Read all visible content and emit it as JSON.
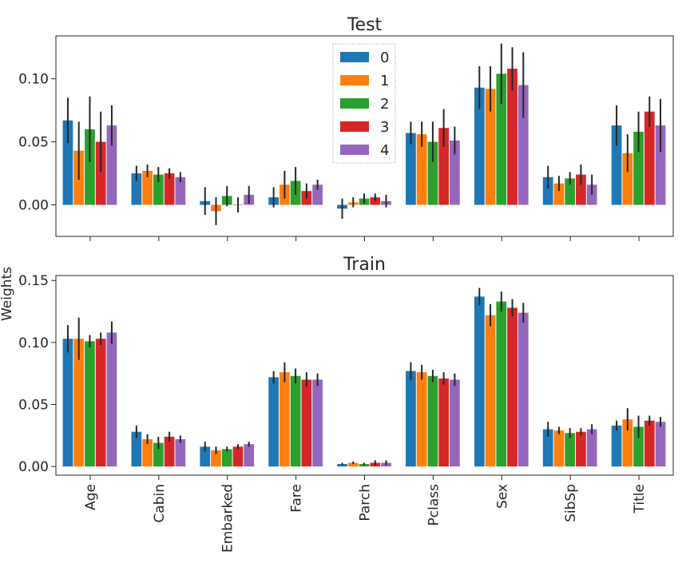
{
  "figure": {
    "ylabel": "Weights"
  },
  "chart_data": [
    {
      "type": "bar",
      "title": "Test",
      "categories": [
        "Age",
        "Cabin",
        "Embarked",
        "Fare",
        "Parch",
        "Pclass",
        "Sex",
        "SibSp",
        "Title"
      ],
      "ylim": [
        -0.025,
        0.134
      ],
      "yticks": [
        0.0,
        0.05,
        0.1
      ],
      "ytick_labels": [
        "0.00",
        "0.05",
        "0.10"
      ],
      "xtick_labels_visible": false,
      "grid": false,
      "legend": {
        "placement": "upper-center",
        "entries": [
          "0",
          "1",
          "2",
          "3",
          "4"
        ]
      },
      "series": [
        {
          "name": "0",
          "color": "#1f77b4",
          "values": [
            0.067,
            0.025,
            0.003,
            0.006,
            -0.003,
            0.057,
            0.093,
            0.022,
            0.063
          ],
          "errors": [
            0.018,
            0.006,
            0.011,
            0.008,
            0.008,
            0.009,
            0.017,
            0.009,
            0.016
          ]
        },
        {
          "name": "1",
          "color": "#ff7f0e",
          "values": [
            0.043,
            0.027,
            -0.005,
            0.016,
            0.002,
            0.056,
            0.092,
            0.017,
            0.041
          ],
          "errors": [
            0.023,
            0.005,
            0.011,
            0.011,
            0.004,
            0.01,
            0.018,
            0.006,
            0.015
          ]
        },
        {
          "name": "2",
          "color": "#2ca02c",
          "values": [
            0.06,
            0.024,
            0.007,
            0.019,
            0.005,
            0.05,
            0.104,
            0.021,
            0.058
          ],
          "errors": [
            0.026,
            0.006,
            0.008,
            0.011,
            0.004,
            0.016,
            0.024,
            0.005,
            0.016
          ]
        },
        {
          "name": "3",
          "color": "#d62728",
          "values": [
            0.05,
            0.025,
            0.0,
            0.011,
            0.006,
            0.061,
            0.108,
            0.024,
            0.074
          ],
          "errors": [
            0.024,
            0.004,
            0.006,
            0.006,
            0.003,
            0.015,
            0.017,
            0.008,
            0.012
          ]
        },
        {
          "name": "4",
          "color": "#9467bd",
          "values": [
            0.063,
            0.022,
            0.008,
            0.016,
            0.003,
            0.051,
            0.095,
            0.016,
            0.063
          ],
          "errors": [
            0.016,
            0.004,
            0.007,
            0.004,
            0.005,
            0.011,
            0.026,
            0.008,
            0.021
          ]
        }
      ]
    },
    {
      "type": "bar",
      "title": "Train",
      "categories": [
        "Age",
        "Cabin",
        "Embarked",
        "Fare",
        "Parch",
        "Pclass",
        "Sex",
        "SibSp",
        "Title"
      ],
      "ylim": [
        -0.007,
        0.154
      ],
      "yticks": [
        0.0,
        0.05,
        0.1,
        0.15
      ],
      "ytick_labels": [
        "0.00",
        "0.05",
        "0.10",
        "0.15"
      ],
      "xtick_labels_visible": true,
      "grid": false,
      "series": [
        {
          "name": "0",
          "color": "#1f77b4",
          "values": [
            0.103,
            0.028,
            0.016,
            0.072,
            0.002,
            0.077,
            0.137,
            0.03,
            0.033
          ],
          "errors": [
            0.011,
            0.005,
            0.004,
            0.005,
            0.001,
            0.007,
            0.007,
            0.006,
            0.004
          ]
        },
        {
          "name": "1",
          "color": "#ff7f0e",
          "values": [
            0.103,
            0.022,
            0.013,
            0.076,
            0.003,
            0.076,
            0.122,
            0.029,
            0.038
          ],
          "errors": [
            0.017,
            0.004,
            0.003,
            0.008,
            0.001,
            0.006,
            0.009,
            0.003,
            0.009
          ]
        },
        {
          "name": "2",
          "color": "#2ca02c",
          "values": [
            0.101,
            0.019,
            0.014,
            0.073,
            0.002,
            0.073,
            0.133,
            0.027,
            0.032
          ],
          "errors": [
            0.005,
            0.005,
            0.002,
            0.006,
            0.001,
            0.005,
            0.008,
            0.004,
            0.009
          ]
        },
        {
          "name": "3",
          "color": "#d62728",
          "values": [
            0.103,
            0.024,
            0.016,
            0.07,
            0.003,
            0.071,
            0.128,
            0.028,
            0.037
          ],
          "errors": [
            0.005,
            0.004,
            0.002,
            0.006,
            0.002,
            0.005,
            0.007,
            0.003,
            0.004
          ]
        },
        {
          "name": "4",
          "color": "#9467bd",
          "values": [
            0.108,
            0.022,
            0.018,
            0.07,
            0.003,
            0.07,
            0.124,
            0.03,
            0.036
          ],
          "errors": [
            0.009,
            0.003,
            0.002,
            0.005,
            0.002,
            0.005,
            0.008,
            0.004,
            0.004
          ]
        }
      ]
    }
  ]
}
